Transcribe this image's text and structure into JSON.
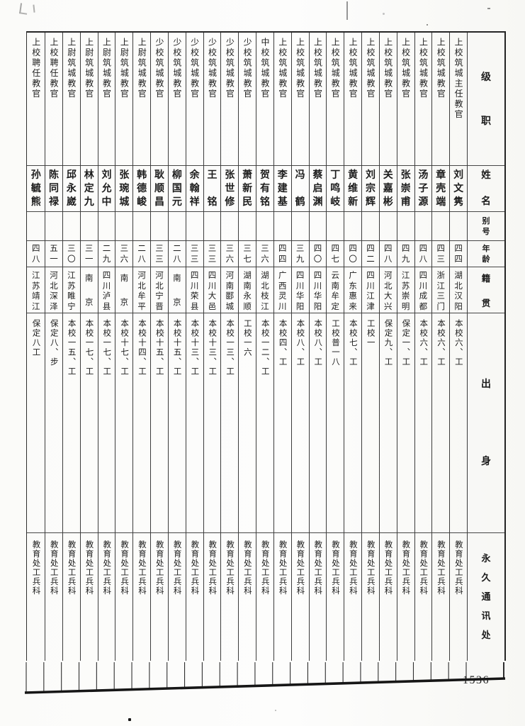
{
  "page": {
    "number": "1536"
  },
  "table": {
    "headers": {
      "rank": "级职",
      "name": "姓名",
      "alias": "别号",
      "age": "年龄",
      "native_place": "籍贯",
      "origin": "出身",
      "address": "永久通讯处"
    },
    "rows": [
      {
        "rank": "上校筑城主任教官",
        "name": "刘文隽",
        "alias": "",
        "age": "四四",
        "native_place": "湖北汉阳",
        "origin": "本校六、工",
        "address": "教育处工兵科"
      },
      {
        "rank": "上校筑城教官",
        "name": "章壳端",
        "alias": "",
        "age": "四三",
        "native_place": "浙江三门",
        "origin": "本校六、工",
        "address": "教育处工兵科"
      },
      {
        "rank": "上校筑城教官",
        "name": "汤子源",
        "alias": "",
        "age": "四八",
        "native_place": "四川成都",
        "origin": "本校六、工",
        "address": "教育处工兵科"
      },
      {
        "rank": "上校筑城教官",
        "name": "张崇甫",
        "alias": "",
        "age": "四九",
        "native_place": "江苏崇明",
        "origin": "保定一、工",
        "address": "教育处工兵科"
      },
      {
        "rank": "上校筑城教官",
        "name": "关嘉彬",
        "alias": "",
        "age": "四八",
        "native_place": "河北大兴",
        "origin": "保定九、工",
        "address": "教育处工兵科"
      },
      {
        "rank": "上校筑城教官",
        "name": "刘宗辉",
        "alias": "",
        "age": "四二",
        "native_place": "四川江津",
        "origin": "工校一",
        "address": "教育处工兵科"
      },
      {
        "rank": "上校筑城教官",
        "name": "黄维新",
        "alias": "",
        "age": "四〇",
        "native_place": "广东惠来",
        "origin": "本校七、工",
        "address": "教育处工兵科"
      },
      {
        "rank": "上校筑城教官",
        "name": "丁鸣岐",
        "alias": "",
        "age": "四七",
        "native_place": "云南牟定",
        "origin": "工校普一八",
        "address": "教育处工兵科"
      },
      {
        "rank": "上校筑城教官",
        "name": "蔡启渊",
        "alias": "",
        "age": "四〇",
        "native_place": "四川华阳",
        "origin": "本校八、工",
        "address": "教育处工兵科"
      },
      {
        "rank": "上校筑城教官",
        "name": "冯鹤",
        "alias": "",
        "age": "三九",
        "native_place": "四川华阳",
        "origin": "本校八、工",
        "address": "教育处工兵科"
      },
      {
        "rank": "上校筑城教官",
        "name": "李建基",
        "alias": "",
        "age": "四四",
        "native_place": "广西灵川",
        "origin": "本校四、工",
        "address": "教育处工兵科"
      },
      {
        "rank": "中校筑城教官",
        "name": "贺有铭",
        "alias": "",
        "age": "三六",
        "native_place": "湖北枝江",
        "origin": "本校一二、工",
        "address": "教育处工兵科"
      },
      {
        "rank": "少校筑城教官",
        "name": "萧新民",
        "alias": "",
        "age": "三七",
        "native_place": "湖南永顺",
        "origin": "工校一六",
        "address": "教育处工兵科"
      },
      {
        "rank": "少校筑城教官",
        "name": "张世修",
        "alias": "",
        "age": "三六",
        "native_place": "河南郾城",
        "origin": "本校一三、工",
        "address": "教育处工兵科"
      },
      {
        "rank": "少校筑城教官",
        "name": "王铭",
        "alias": "",
        "age": "三三",
        "native_place": "四川大邑",
        "origin": "本校十三、工",
        "address": "教育处工兵科"
      },
      {
        "rank": "少校筑城教官",
        "name": "余翰祥",
        "alias": "",
        "age": "三三",
        "native_place": "四川荣县",
        "origin": "本校十三、工",
        "address": "教育处工兵科"
      },
      {
        "rank": "少校筑城教官",
        "name": "柳国元",
        "alias": "",
        "age": "二八",
        "native_place": "南京",
        "origin": "本校十五、工",
        "address": "教育处工兵科"
      },
      {
        "rank": "少校筑城教官",
        "name": "耿顺昌",
        "alias": "",
        "age": "三三",
        "native_place": "河北宁晋",
        "origin": "本校十五、工",
        "address": "教育处工兵科"
      },
      {
        "rank": "上尉筑城教官",
        "name": "韩德峻",
        "alias": "",
        "age": "二八",
        "native_place": "河北牟平",
        "origin": "本校十四、工",
        "address": "教育处工兵科"
      },
      {
        "rank": "上尉筑城教官",
        "name": "张琬城",
        "alias": "",
        "age": "三六",
        "native_place": "南京",
        "origin": "本校十七、工",
        "address": "教育处工兵科"
      },
      {
        "rank": "上尉筑城教官",
        "name": "刘允中",
        "alias": "",
        "age": "二九",
        "native_place": "四川泸县",
        "origin": "本校一七、工",
        "address": "教育处工兵科"
      },
      {
        "rank": "上尉筑城教官",
        "name": "林定九",
        "alias": "",
        "age": "三一",
        "native_place": "南京",
        "origin": "本校一七、工",
        "address": "教育处工兵科"
      },
      {
        "rank": "上尉筑城教官",
        "name": "邱永崴",
        "alias": "",
        "age": "三〇",
        "native_place": "江苏睢宁",
        "origin": "本校一五、工",
        "address": "教育处工兵科"
      },
      {
        "rank": "上校聘任教官",
        "name": "陈同禄",
        "alias": "",
        "age": "五一",
        "native_place": "河北深泽",
        "origin": "保定八、步",
        "address": "教育处工兵科"
      },
      {
        "rank": "上校聘任教官",
        "name": "孙毓熊",
        "alias": "",
        "age": "四八",
        "native_place": "江苏靖江",
        "origin": "保定八工",
        "address": "教育处工兵科"
      }
    ]
  }
}
